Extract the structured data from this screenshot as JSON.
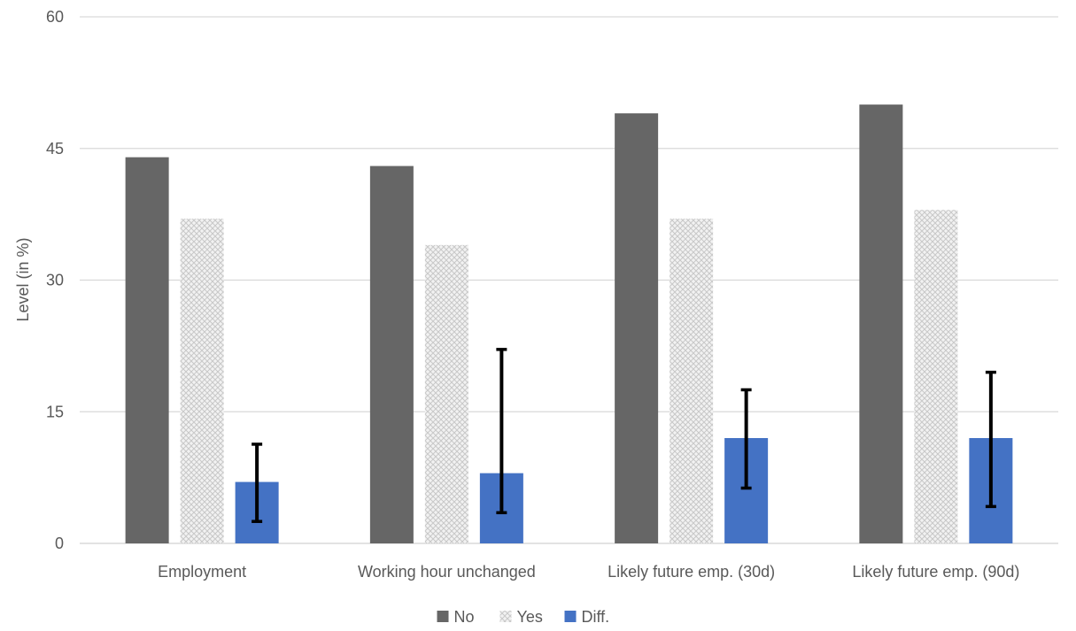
{
  "chart_data": {
    "type": "bar",
    "title": "",
    "xlabel": "",
    "ylabel": "Level (in %)",
    "ylim": [
      0,
      60
    ],
    "yticks": [
      0,
      15,
      30,
      45,
      60
    ],
    "grid": true,
    "legend_position": "bottom",
    "categories": [
      "Employment",
      "Working hour unchanged",
      "Likely future emp. (30d)",
      "Likely future emp. (90d)"
    ],
    "series": [
      {
        "name": "No",
        "color": "#666666",
        "pattern": "solid",
        "values": [
          44,
          43,
          49,
          50
        ]
      },
      {
        "name": "Yes",
        "color": "#d9d9d9",
        "pattern": "crosshatch",
        "values": [
          37,
          34,
          37,
          38
        ]
      },
      {
        "name": "Diff.",
        "color": "#4472c4",
        "pattern": "solid",
        "values": [
          7,
          8,
          12,
          12
        ],
        "error_low": [
          2.5,
          3.5,
          6.3,
          4.2
        ],
        "error_high": [
          11.3,
          22.1,
          17.5,
          19.5
        ]
      }
    ]
  }
}
